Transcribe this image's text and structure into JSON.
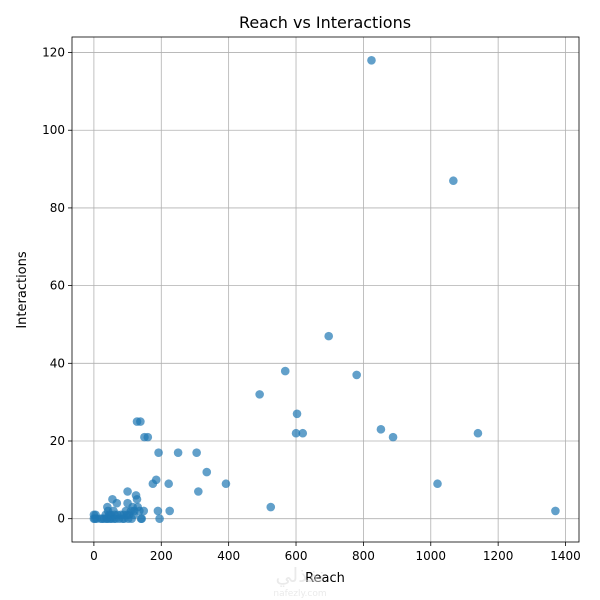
{
  "chart_data": {
    "type": "scatter",
    "title": "Reach vs Interactions",
    "xlabel": "Reach",
    "ylabel": "Interactions",
    "xlim": [
      -65,
      1440
    ],
    "ylim": [
      -6,
      124
    ],
    "xticks": [
      0,
      200,
      400,
      600,
      800,
      1000,
      1200,
      1400
    ],
    "yticks": [
      0,
      20,
      40,
      60,
      80,
      100,
      120
    ],
    "grid": true,
    "marker_color": "#1f77b4",
    "marker_opacity": 0.7,
    "points": [
      {
        "x": 0,
        "y": 0
      },
      {
        "x": 0,
        "y": 1
      },
      {
        "x": 3,
        "y": 0
      },
      {
        "x": 5,
        "y": 1
      },
      {
        "x": 8,
        "y": 0
      },
      {
        "x": 20,
        "y": 0
      },
      {
        "x": 25,
        "y": 0
      },
      {
        "x": 30,
        "y": 0
      },
      {
        "x": 35,
        "y": 1
      },
      {
        "x": 38,
        "y": 0
      },
      {
        "x": 40,
        "y": 0
      },
      {
        "x": 40,
        "y": 3
      },
      {
        "x": 42,
        "y": 2
      },
      {
        "x": 45,
        "y": 1
      },
      {
        "x": 48,
        "y": 0
      },
      {
        "x": 50,
        "y": 1
      },
      {
        "x": 52,
        "y": 0
      },
      {
        "x": 55,
        "y": 5
      },
      {
        "x": 58,
        "y": 2
      },
      {
        "x": 60,
        "y": 0
      },
      {
        "x": 62,
        "y": 1
      },
      {
        "x": 65,
        "y": 0
      },
      {
        "x": 68,
        "y": 4
      },
      {
        "x": 70,
        "y": 1
      },
      {
        "x": 75,
        "y": 0
      },
      {
        "x": 80,
        "y": 1
      },
      {
        "x": 85,
        "y": 0
      },
      {
        "x": 88,
        "y": 1
      },
      {
        "x": 90,
        "y": 0
      },
      {
        "x": 95,
        "y": 2
      },
      {
        "x": 98,
        "y": 1
      },
      {
        "x": 100,
        "y": 7
      },
      {
        "x": 100,
        "y": 4
      },
      {
        "x": 102,
        "y": 0
      },
      {
        "x": 105,
        "y": 1
      },
      {
        "x": 110,
        "y": 2
      },
      {
        "x": 112,
        "y": 0
      },
      {
        "x": 115,
        "y": 3
      },
      {
        "x": 118,
        "y": 1
      },
      {
        "x": 120,
        "y": 2
      },
      {
        "x": 125,
        "y": 6
      },
      {
        "x": 128,
        "y": 25
      },
      {
        "x": 128,
        "y": 5
      },
      {
        "x": 130,
        "y": 3
      },
      {
        "x": 135,
        "y": 2
      },
      {
        "x": 138,
        "y": 25
      },
      {
        "x": 140,
        "y": 0
      },
      {
        "x": 142,
        "y": 0
      },
      {
        "x": 148,
        "y": 2
      },
      {
        "x": 150,
        "y": 21
      },
      {
        "x": 160,
        "y": 21
      },
      {
        "x": 175,
        "y": 9
      },
      {
        "x": 185,
        "y": 10
      },
      {
        "x": 190,
        "y": 2
      },
      {
        "x": 192,
        "y": 17
      },
      {
        "x": 195,
        "y": 0
      },
      {
        "x": 222,
        "y": 9
      },
      {
        "x": 225,
        "y": 2
      },
      {
        "x": 250,
        "y": 17
      },
      {
        "x": 305,
        "y": 17
      },
      {
        "x": 310,
        "y": 7
      },
      {
        "x": 335,
        "y": 12
      },
      {
        "x": 392,
        "y": 9
      },
      {
        "x": 492,
        "y": 32
      },
      {
        "x": 525,
        "y": 3
      },
      {
        "x": 568,
        "y": 38
      },
      {
        "x": 600,
        "y": 22
      },
      {
        "x": 603,
        "y": 27
      },
      {
        "x": 620,
        "y": 22
      },
      {
        "x": 697,
        "y": 47
      },
      {
        "x": 780,
        "y": 37
      },
      {
        "x": 824,
        "y": 118
      },
      {
        "x": 852,
        "y": 23
      },
      {
        "x": 888,
        "y": 21
      },
      {
        "x": 1020,
        "y": 9
      },
      {
        "x": 1067,
        "y": 87
      },
      {
        "x": 1140,
        "y": 22
      },
      {
        "x": 1370,
        "y": 2
      }
    ]
  },
  "watermark": {
    "brand": "نفذلي",
    "url": "nafezly.com"
  }
}
